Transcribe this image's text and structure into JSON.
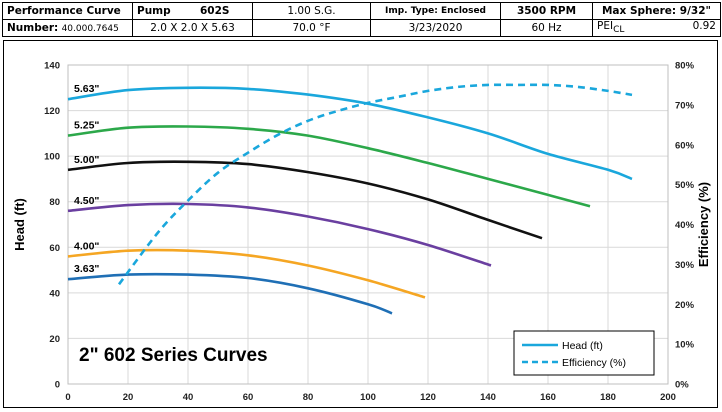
{
  "header": {
    "row1": {
      "title": "Performance Curve",
      "pump_label": "Pump",
      "pump_model": "602S",
      "sg": "1.00  S.G.",
      "imp_type": "Imp. Type: Enclosed",
      "rpm": "3500 RPM",
      "max_sphere": "Max Sphere: 9/32\""
    },
    "row2": {
      "number_label": "Number:",
      "number_value": "40.000.7645",
      "size": "2.0 X 2.0 X 5.63",
      "temp": "70.0 °F",
      "date": "3/23/2020",
      "hz": "60 Hz",
      "pei_label": "PEI",
      "pei_sub": "CL",
      "pei_value": "0.92"
    }
  },
  "chart_data": {
    "type": "line",
    "title": "2\" 602 Series Curves",
    "xlabel": "",
    "ylabel": "Head (ft)",
    "y2label": "Efficiency (%)",
    "xlim": [
      0,
      200
    ],
    "ylim": [
      0,
      140
    ],
    "y2lim": [
      0,
      80
    ],
    "x_ticks": [
      0,
      20,
      40,
      60,
      80,
      100,
      120,
      140,
      160,
      180,
      200
    ],
    "y_ticks": [
      0,
      20,
      40,
      60,
      80,
      100,
      120,
      140
    ],
    "y2_ticks": [
      "0%",
      "10%",
      "20%",
      "30%",
      "40%",
      "50%",
      "60%",
      "70%",
      "80%"
    ],
    "grid": true,
    "legend": {
      "position": "bottom-right",
      "entries": [
        {
          "label": "Head (ft)",
          "style": "solid",
          "color": "#1aa7dc"
        },
        {
          "label": "Efficiency (%)",
          "style": "dashed",
          "color": "#1aa7dc"
        }
      ]
    },
    "series": [
      {
        "name": "5.63\"",
        "axis": "head",
        "color": "#1aa7dc",
        "x": [
          0,
          20,
          40,
          60,
          80,
          100,
          120,
          140,
          160,
          180,
          188
        ],
        "y": [
          125,
          129,
          130,
          129.5,
          127,
          123,
          117,
          110,
          101,
          94,
          90
        ]
      },
      {
        "name": "5.25\"",
        "axis": "head",
        "color": "#2ca84a",
        "x": [
          0,
          20,
          40,
          60,
          80,
          100,
          120,
          140,
          160,
          174
        ],
        "y": [
          109,
          112.5,
          113,
          112,
          109,
          103.5,
          97,
          90,
          83,
          78
        ]
      },
      {
        "name": "5.00\"",
        "axis": "head",
        "color": "#111111",
        "x": [
          0,
          20,
          40,
          60,
          80,
          100,
          120,
          140,
          158
        ],
        "y": [
          94,
          97,
          97.5,
          96.5,
          93,
          88,
          81,
          72,
          64
        ]
      },
      {
        "name": "4.50\"",
        "axis": "head",
        "color": "#6a3fa0",
        "x": [
          0,
          20,
          40,
          60,
          80,
          100,
          120,
          141
        ],
        "y": [
          76,
          78.5,
          79,
          77.5,
          73.5,
          68,
          61,
          52
        ]
      },
      {
        "name": "4.00\"",
        "axis": "head",
        "color": "#f5a623",
        "x": [
          0,
          20,
          40,
          60,
          80,
          100,
          119
        ],
        "y": [
          56,
          58.5,
          58.5,
          56.5,
          52,
          45.5,
          38
        ]
      },
      {
        "name": "3.63\"",
        "axis": "head",
        "color": "#1f6fb5",
        "x": [
          0,
          20,
          40,
          60,
          80,
          100,
          108
        ],
        "y": [
          46,
          48,
          48,
          46.5,
          42,
          35,
          31
        ]
      },
      {
        "name": "Efficiency",
        "axis": "efficiency",
        "style": "dashed",
        "color": "#1aa7dc",
        "x": [
          17,
          30,
          40,
          50,
          60,
          70,
          80,
          90,
          100,
          110,
          120,
          130,
          140,
          150,
          160,
          170,
          180,
          188
        ],
        "y": [
          25,
          38,
          46,
          53,
          58,
          62.5,
          66,
          68.5,
          70.5,
          72,
          73.5,
          74.5,
          75,
          75,
          75,
          74.5,
          73.5,
          72.5
        ]
      }
    ]
  }
}
